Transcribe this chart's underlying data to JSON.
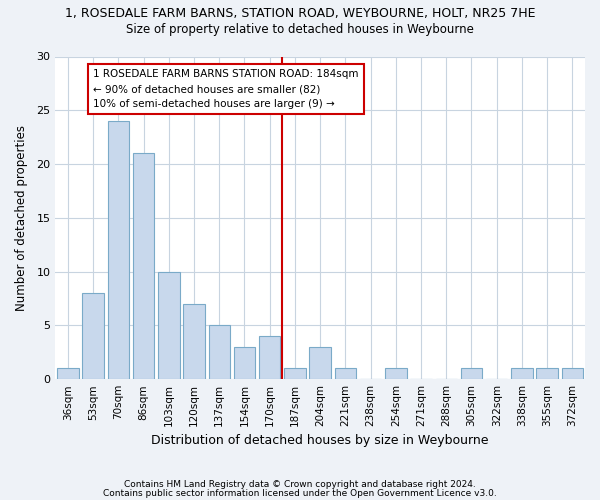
{
  "title": "1, ROSEDALE FARM BARNS, STATION ROAD, WEYBOURNE, HOLT, NR25 7HE",
  "subtitle": "Size of property relative to detached houses in Weybourne",
  "xlabel": "Distribution of detached houses by size in Weybourne",
  "ylabel": "Number of detached properties",
  "categories": [
    "36sqm",
    "53sqm",
    "70sqm",
    "86sqm",
    "103sqm",
    "120sqm",
    "137sqm",
    "154sqm",
    "170sqm",
    "187sqm",
    "204sqm",
    "221sqm",
    "238sqm",
    "254sqm",
    "271sqm",
    "288sqm",
    "305sqm",
    "322sqm",
    "338sqm",
    "355sqm",
    "372sqm"
  ],
  "values": [
    1,
    8,
    24,
    21,
    10,
    7,
    5,
    3,
    4,
    1,
    3,
    1,
    0,
    1,
    0,
    0,
    1,
    0,
    1,
    1,
    1
  ],
  "bar_color": "#c8d8ec",
  "bar_edge_color": "#7aaac8",
  "vline_color": "#cc0000",
  "annotation_title": "1 ROSEDALE FARM BARNS STATION ROAD: 184sqm",
  "annotation_line1": "← 90% of detached houses are smaller (82)",
  "annotation_line2": "10% of semi-detached houses are larger (9) →",
  "annotation_box_color": "#cc0000",
  "ylim": [
    0,
    30
  ],
  "yticks": [
    0,
    5,
    10,
    15,
    20,
    25,
    30
  ],
  "footer1": "Contains HM Land Registry data © Crown copyright and database right 2024.",
  "footer2": "Contains public sector information licensed under the Open Government Licence v3.0.",
  "bg_color": "#eef2f7",
  "plot_bg_color": "#ffffff",
  "grid_color": "#c8d4e0"
}
